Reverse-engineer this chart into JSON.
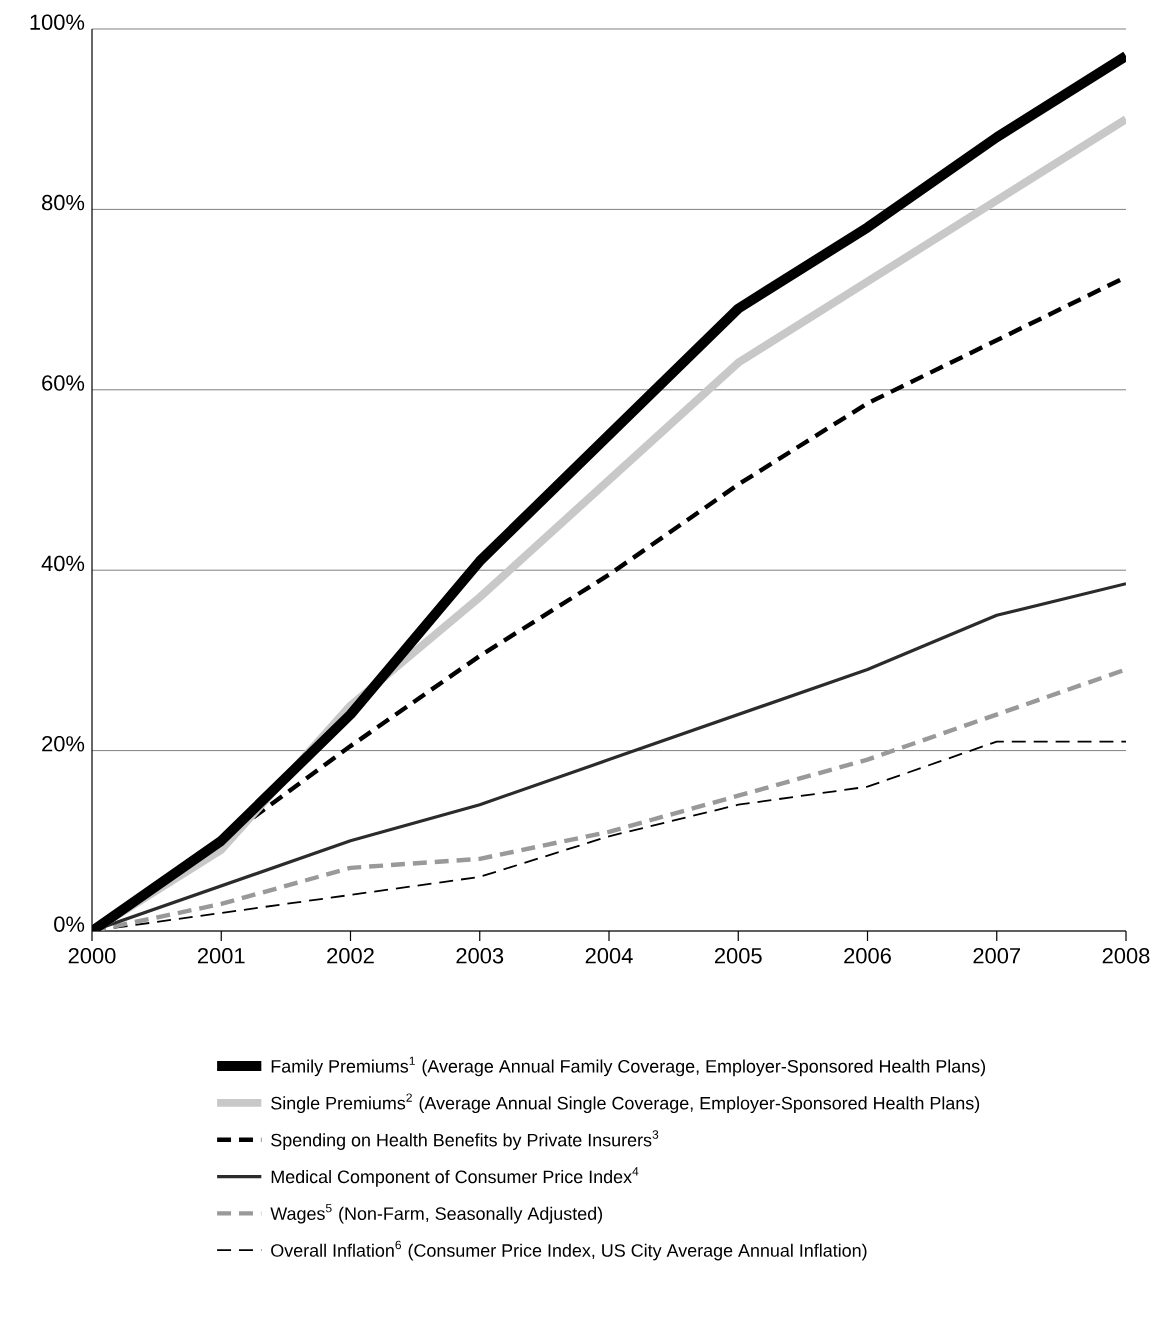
{
  "chart_data": {
    "type": "line",
    "x": [
      2000,
      2001,
      2002,
      2003,
      2004,
      2005,
      2006,
      2007,
      2008
    ],
    "xlim": [
      2000,
      2008
    ],
    "xticks": [
      2000,
      2001,
      2002,
      2003,
      2004,
      2005,
      2006,
      2007,
      2008
    ],
    "ylim": [
      0,
      100
    ],
    "yticks": [
      {
        "value": 0,
        "label": "0%"
      },
      {
        "value": 20,
        "label": "20%"
      },
      {
        "value": 40,
        "label": "40%"
      },
      {
        "value": 60,
        "label": "60%"
      },
      {
        "value": 80,
        "label": "80%"
      },
      {
        "value": 100,
        "label": "100%"
      }
    ],
    "grid": "y",
    "legend": "bottom",
    "marker": "none",
    "series": [
      {
        "name": "Family Premiums$^{1}$ (Average Annual Family Coverage, Employer-Sponsored Health Plans)",
        "color": "#000000",
        "line_style": "solid",
        "values": [
          0,
          10,
          24,
          41,
          55,
          69,
          78,
          88,
          97
        ]
      },
      {
        "name": "Single Premiums$^{2}$ (Average Annual Single Coverage, Employer-Sponsored Health Plans)",
        "color": "#c8c8c8",
        "line_style": "solid",
        "values": [
          0,
          9,
          25,
          37,
          50,
          63,
          72,
          81,
          90
        ]
      },
      {
        "name": "Spending on Health Benefits by Private Insurers$^{3}$",
        "color": "#000000",
        "line_style": "dashed",
        "values": [
          0,
          10,
          20.5,
          30.5,
          39.5,
          49.5,
          58.5,
          65.5,
          72.5
        ]
      },
      {
        "name": "Medical Component of Consumer Price Index$^{4}$",
        "color": "#2b2b2b",
        "line_style": "solid",
        "values": [
          0,
          5,
          10,
          14,
          19,
          24,
          29,
          35,
          38.5
        ]
      },
      {
        "name": "Wages$^{5}$ (Non-Farm, Seasonally Adjusted)",
        "color": "#999999",
        "line_style": "dashed",
        "values": [
          0,
          3,
          7,
          8,
          11,
          15,
          19,
          24,
          29
        ]
      },
      {
        "name": "Overall Inflation$^{6}$ (Consumer Price Index, US City Average Annual Inflation)",
        "color": "#000000",
        "line_style": "dashed",
        "values": [
          0,
          2,
          4,
          6,
          10.5,
          14,
          16,
          21,
          21
        ]
      }
    ]
  }
}
